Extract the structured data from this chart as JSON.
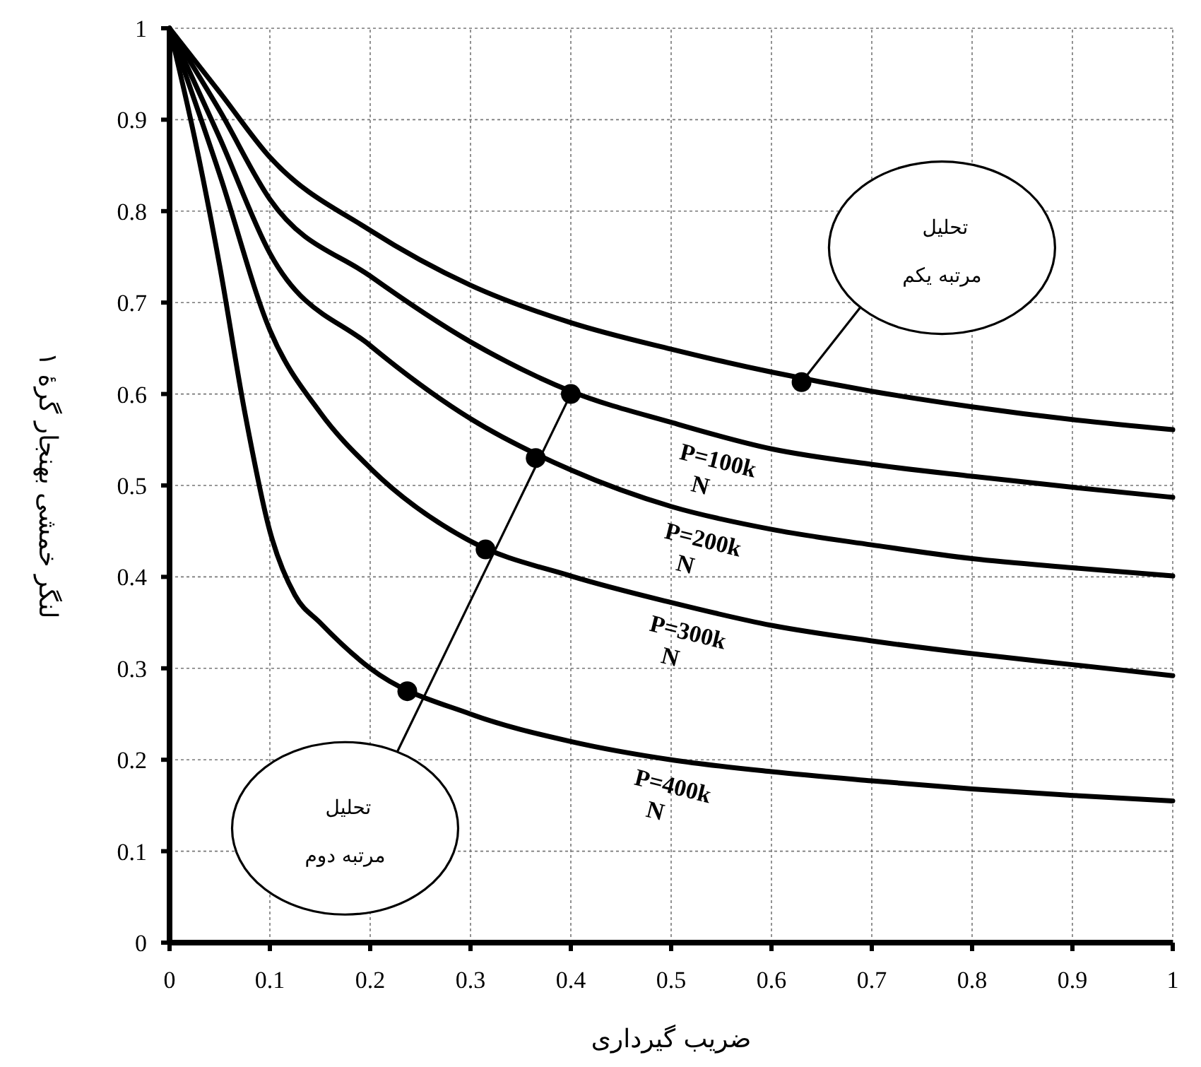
{
  "chart_data": {
    "type": "line",
    "xlabel": "ضریب گیرداری",
    "ylabel": "لنگر خمشی بهنجار گرهٔ ۱",
    "xlim": [
      0,
      1
    ],
    "ylim": [
      0,
      1
    ],
    "xticks": [
      0,
      0.1,
      0.2,
      0.3,
      0.4,
      0.5,
      0.6,
      0.7,
      0.8,
      0.9,
      1
    ],
    "yticks": [
      0,
      0.1,
      0.2,
      0.3,
      0.4,
      0.5,
      0.6,
      0.7,
      0.8,
      0.9,
      1
    ],
    "grid": true,
    "line_style": "solid",
    "marker": "none",
    "series": [
      {
        "color": "#000000",
        "x": [
          0,
          0.05,
          0.1,
          0.2,
          0.3,
          0.4,
          0.5,
          0.6,
          0.7,
          0.8,
          0.9,
          1
        ],
        "values": [
          1,
          0.93,
          0.859,
          0.779,
          0.719,
          0.678,
          0.649,
          0.624,
          0.603,
          0.586,
          0.572,
          0.561
        ]
      },
      {
        "name": "P=100k N",
        "color": "#000000",
        "x": [
          0,
          0.05,
          0.1,
          0.2,
          0.3,
          0.4,
          0.5,
          0.6,
          0.7,
          0.8,
          0.9,
          1
        ],
        "values": [
          1,
          0.91,
          0.813,
          0.729,
          0.657,
          0.603,
          0.569,
          0.54,
          0.523,
          0.51,
          0.498,
          0.487
        ]
      },
      {
        "name": "P=200k N",
        "color": "#000000",
        "x": [
          0,
          0.05,
          0.1,
          0.2,
          0.3,
          0.4,
          0.5,
          0.6,
          0.7,
          0.8,
          0.9,
          1
        ],
        "values": [
          1,
          0.88,
          0.754,
          0.653,
          0.573,
          0.517,
          0.477,
          0.452,
          0.435,
          0.42,
          0.41,
          0.401
        ]
      },
      {
        "name": "P=300k N",
        "color": "#000000",
        "x": [
          0,
          0.05,
          0.1,
          0.15,
          0.2,
          0.3,
          0.4,
          0.5,
          0.6,
          0.7,
          0.8,
          0.9,
          1
        ],
        "values": [
          1,
          0.84,
          0.67,
          0.58,
          0.519,
          0.439,
          0.401,
          0.372,
          0.347,
          0.33,
          0.316,
          0.304,
          0.292
        ]
      },
      {
        "name": "P=400k N",
        "color": "#000000",
        "x": [
          0,
          0.025,
          0.05,
          0.075,
          0.1,
          0.125,
          0.15,
          0.2,
          0.3,
          0.4,
          0.5,
          0.6,
          0.7,
          0.8,
          0.9,
          1
        ],
        "values": [
          1,
          0.88,
          0.74,
          0.58,
          0.45,
          0.38,
          0.35,
          0.3,
          0.25,
          0.22,
          0.2,
          0.187,
          0.177,
          0.168,
          0.161,
          0.155
        ]
      },
      {
        "type": "scatter",
        "marker": "circle",
        "color": "#000000",
        "x": [
          0.63,
          0.4,
          0.365,
          0.315,
          0.237
        ],
        "values": [
          0.613,
          0.6,
          0.53,
          0.43,
          0.275
        ]
      }
    ],
    "annotations": [
      "تحلیل مرتبه یکم",
      "تحلیل مرتبه دوم"
    ]
  }
}
